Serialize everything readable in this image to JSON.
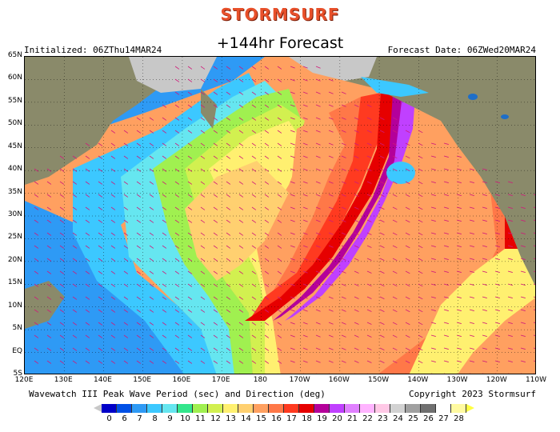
{
  "brand": "STORMSURF",
  "title": "+144hr Forecast",
  "initialized": "Initialized: 06ZThu14MAR24",
  "forecast_date": "Forecast Date: 06ZWed20MAR24",
  "variable_label": "Wavewatch III Peak Wave Period (sec) and Direction (deg)",
  "copyright": "Copyright 2023 Stormsurf",
  "lat_labels": [
    "65N",
    "60N",
    "55N",
    "50N",
    "45N",
    "40N",
    "35N",
    "30N",
    "25N",
    "20N",
    "15N",
    "10N",
    "5N",
    "EQ",
    "5S"
  ],
  "lon_labels": [
    "120E",
    "130E",
    "140E",
    "150E",
    "160E",
    "170E",
    "180",
    "170W",
    "160W",
    "150W",
    "140W",
    "130W",
    "120W",
    "110W"
  ],
  "scale": {
    "labels": [
      "0",
      "6",
      "7",
      "8",
      "9",
      "10",
      "11",
      "12",
      "13",
      "14",
      "15",
      "16",
      "17",
      "18",
      "19",
      "20",
      "21",
      "22",
      "23",
      "24",
      "25",
      "26",
      "27",
      "28"
    ],
    "colors": [
      "#0000c8",
      "#0050e6",
      "#2e9af5",
      "#3cc8ff",
      "#66e6f0",
      "#33e68c",
      "#a0f050",
      "#d2f050",
      "#fff070",
      "#ffd070",
      "#ffa060",
      "#ff7848",
      "#ff3a20",
      "#e60000",
      "#b4009a",
      "#c040ff",
      "#e080ff",
      "#ffb4ff",
      "#ffc8e6",
      "#d2d2d2",
      "#a0a0a0",
      "#707070",
      "#ffffff",
      "#fffaa0"
    ],
    "under_color": "#c8c8c8",
    "over_color": "#ffff40"
  },
  "map_colors": {
    "land": "#8a8a6a",
    "ice": "#c8c8c8",
    "lake": "#1e6ec8"
  }
}
